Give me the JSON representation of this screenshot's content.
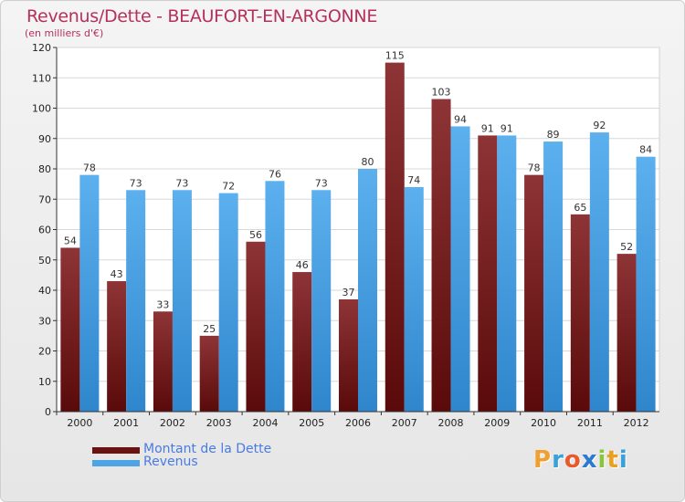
{
  "header": {
    "title": "Revenus/Dette - BEAUFORT-EN-ARGONNE",
    "subtitle": "(en milliers d'€)"
  },
  "logo": {
    "text": "Proxiti",
    "colors": [
      "#f0a030",
      "#3aa0d8",
      "#e85a2a",
      "#2a7ad0",
      "#8ac43a",
      "#e8a020",
      "#3aa0d8"
    ]
  },
  "colors": {
    "dette": "#7a1c1c",
    "revenus": "#4ea4e4",
    "title": "#b5315a",
    "legend_text": "#4a7be0"
  },
  "chart_data": {
    "type": "bar",
    "title": "Revenus/Dette - BEAUFORT-EN-ARGONNE",
    "subtitle": "(en milliers d'€)",
    "xlabel": "",
    "ylabel": "",
    "ylim": [
      0,
      120
    ],
    "yticks": [
      0,
      10,
      20,
      30,
      40,
      50,
      60,
      70,
      80,
      90,
      100,
      110,
      120
    ],
    "grid": "horizontal",
    "legend_position": "bottom-left",
    "categories": [
      "2000",
      "2001",
      "2002",
      "2003",
      "2004",
      "2005",
      "2006",
      "2007",
      "2008",
      "2009",
      "2010",
      "2011",
      "2012"
    ],
    "series": [
      {
        "name": "Montant de la Dette",
        "color": "#7a1c1c",
        "values": [
          54,
          43,
          33,
          25,
          56,
          46,
          37,
          115,
          103,
          91,
          78,
          65,
          52
        ]
      },
      {
        "name": "Revenus",
        "color": "#4ea4e4",
        "values": [
          78,
          73,
          73,
          72,
          76,
          73,
          80,
          74,
          94,
          91,
          89,
          92,
          84
        ]
      }
    ]
  }
}
